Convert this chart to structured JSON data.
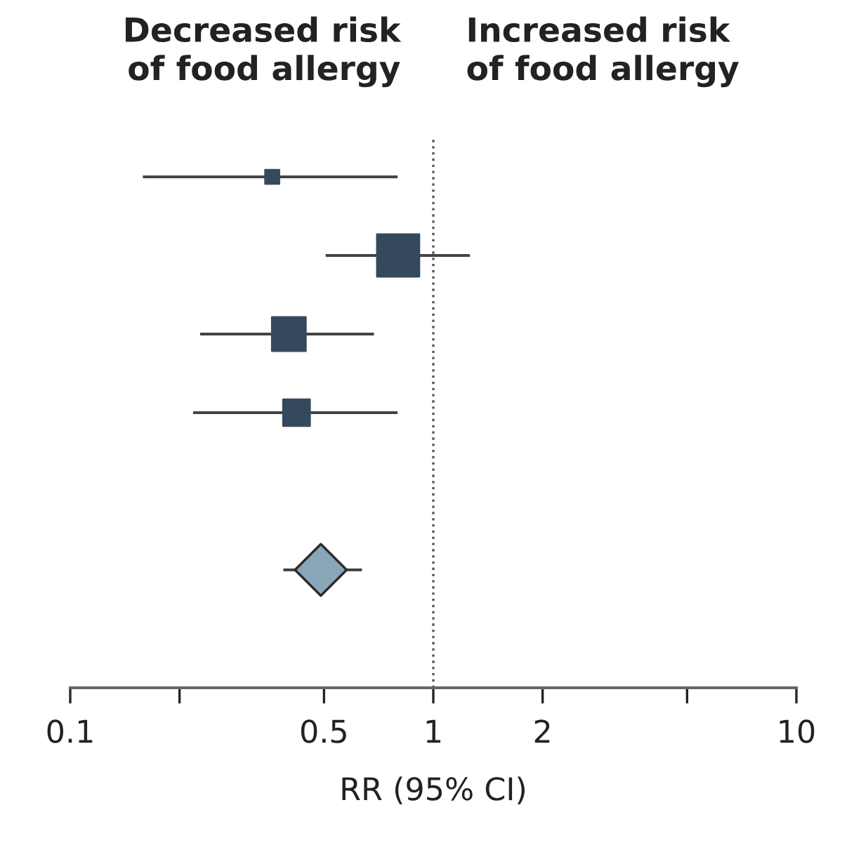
{
  "chart_data": {
    "type": "scatter",
    "orientation": "horizontal",
    "xlabel": "RR (95% CI)",
    "annotations": [
      "Decreased risk\nof food allergy",
      "Increased risk\nof food allergy"
    ],
    "categories": [
      null,
      null,
      null,
      null,
      null,
      null,
      null
    ],
    "log": "x",
    "xlim": [
      0.1,
      10
    ],
    "xticks": [
      0.1,
      {
        "value": 0.2,
        "label": null
      },
      0.5,
      1,
      2,
      {
        "value": 5,
        "label": null
      },
      10
    ],
    "tick_labels": "x",
    "grid": false,
    "legend": false,
    "ref_lines": [
      {
        "axis": "x",
        "value": 1,
        "line_style": "dotted",
        "color": "#555555"
      }
    ],
    "series": [
      {
        "marker": "square",
        "color": "#34495c",
        "values": [
          0.36,
          0.8,
          0.4,
          0.42,
          null,
          null,
          null
        ],
        "errors": [
          [
            0.16,
            0.79
          ],
          [
            0.51,
            1.25
          ],
          [
            0.23,
            0.68
          ],
          [
            0.22,
            0.79
          ],
          null,
          null,
          null
        ],
        "sizes": [
          0.11,
          1,
          0.64,
          0.4,
          null,
          null,
          null
        ]
      },
      {
        "marker": "diamond",
        "color": "#8ba5b8",
        "values": [
          null,
          null,
          null,
          null,
          null,
          0.49,
          null
        ],
        "errors": [
          null,
          null,
          null,
          null,
          null,
          [
            0.39,
            0.63
          ],
          null
        ]
      }
    ]
  }
}
